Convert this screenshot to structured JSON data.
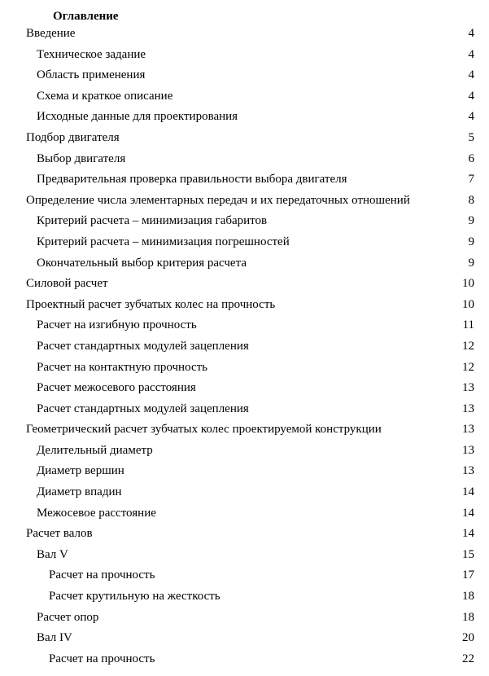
{
  "title": "Оглавление",
  "entries": [
    {
      "label": "Введение",
      "page": "4",
      "level": 0
    },
    {
      "label": "Техническое задание",
      "page": "4",
      "level": 1
    },
    {
      "label": "Область применения",
      "page": "4",
      "level": 1
    },
    {
      "label": "Схема и краткое описание",
      "page": "4",
      "level": 1
    },
    {
      "label": "Исходные данные для проектирования",
      "page": "4",
      "level": 1
    },
    {
      "label": "Подбор двигателя",
      "page": "5",
      "level": 0
    },
    {
      "label": "Выбор двигателя",
      "page": "6",
      "level": 1
    },
    {
      "label": "Предварительная проверка правильности выбора двигателя",
      "page": "7",
      "level": 1
    },
    {
      "label": "Определение числа элементарных передач и их передаточных отношений",
      "page": "8",
      "level": 0
    },
    {
      "label": "Критерий расчета – минимизация габаритов",
      "page": "9",
      "level": 1
    },
    {
      "label": "Критерий расчета – минимизация погрешностей",
      "page": "9",
      "level": 1
    },
    {
      "label": "Окончательный выбор критерия расчета",
      "page": "9",
      "level": 1
    },
    {
      "label": "Силовой расчет",
      "page": "10",
      "level": 0
    },
    {
      "label": "Проектный расчет зубчатых колес на прочность",
      "page": "10",
      "level": 0
    },
    {
      "label": "Расчет на изгибную прочность",
      "page": "11",
      "level": 1
    },
    {
      "label": "Расчет стандартных модулей зацепления",
      "page": "12",
      "level": 1
    },
    {
      "label": "Расчет на контактную прочность",
      "page": "12",
      "level": 1
    },
    {
      "label": "Расчет межосевого расстояния",
      "page": "13",
      "level": 1
    },
    {
      "label": "Расчет стандартных модулей зацепления",
      "page": "13",
      "level": 1
    },
    {
      "label": "Геометрический расчет зубчатых колес проектируемой конструкции",
      "page": "13",
      "level": 0
    },
    {
      "label": "Делительный диаметр",
      "page": "13",
      "level": 1
    },
    {
      "label": "Диаметр вершин",
      "page": "13",
      "level": 1
    },
    {
      "label": "Диаметр впадин",
      "page": "14",
      "level": 1
    },
    {
      "label": "Межосевое расстояние",
      "page": "14",
      "level": 1
    },
    {
      "label": "Расчет валов",
      "page": "14",
      "level": 0
    },
    {
      "label": "Вал V",
      "page": "15",
      "level": 1
    },
    {
      "label": "Расчет на прочность",
      "page": "17",
      "level": 2
    },
    {
      "label": "Расчет крутильную на жесткость",
      "page": "18",
      "level": 2
    },
    {
      "label": "Расчет опор",
      "page": "18",
      "level": 1
    },
    {
      "label": "Вал IV",
      "page": "20",
      "level": 1
    },
    {
      "label": "Расчет на прочность",
      "page": "22",
      "level": 2
    }
  ]
}
